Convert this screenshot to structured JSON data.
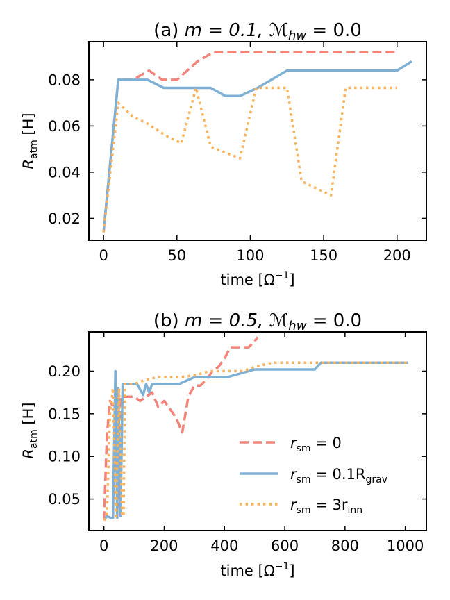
{
  "colors": {
    "red": "#f4837a",
    "blue": "#7eb0d5",
    "orange": "#fbb25b",
    "axis": "#000000"
  },
  "chart_data": [
    {
      "id": "a",
      "type": "line",
      "title_prefix": "(a) ",
      "title_m": "m = 0.1,",
      "title_mhw": "ℳ",
      "title_mhw_sub": "hw",
      "title_mhw_value": " = 0.0",
      "xlabel": "time [Ω",
      "xlabel_sup": "−1",
      "xlabel_end": "]",
      "ylabel": "R",
      "ylabel_sub": "atm",
      "ylabel_unit": " [H]",
      "xlim": [
        -10,
        220
      ],
      "ylim": [
        0.0105,
        0.0965
      ],
      "xticks": [
        0,
        50,
        100,
        150,
        200
      ],
      "xtick_labels": [
        "0",
        "50",
        "100",
        "150",
        "200"
      ],
      "yticks": [
        0.02,
        0.04,
        0.06,
        0.08
      ],
      "ytick_labels": [
        "0.02",
        "0.04",
        "0.06",
        "0.08"
      ],
      "series": [
        {
          "name": "r_sm = 0",
          "style": "dashed",
          "color_key": "red",
          "x": [
            0,
            10,
            20,
            31,
            40,
            50,
            64,
            75,
            85,
            100,
            125,
            150,
            175,
            200
          ],
          "y": [
            0.014,
            0.08,
            0.08,
            0.084,
            0.08,
            0.08,
            0.088,
            0.092,
            0.092,
            0.092,
            0.092,
            0.092,
            0.092,
            0.092
          ]
        },
        {
          "name": "r_sm = 0.1 R_grav",
          "style": "solid",
          "color_key": "blue",
          "x": [
            0,
            10,
            20,
            30,
            41,
            50,
            60,
            73,
            83,
            93,
            105,
            125,
            150,
            175,
            200,
            210
          ],
          "y": [
            0.014,
            0.08,
            0.08,
            0.08,
            0.0765,
            0.0765,
            0.0765,
            0.0765,
            0.073,
            0.073,
            0.0765,
            0.084,
            0.084,
            0.084,
            0.084,
            0.088
          ]
        },
        {
          "name": "r_sm = 3 r_inn",
          "style": "dotted",
          "color_key": "orange",
          "x": [
            0,
            10,
            20,
            30,
            42,
            53,
            63,
            73,
            83,
            93,
            104,
            115,
            125,
            135,
            145,
            155,
            165,
            175,
            200
          ],
          "y": [
            0.014,
            0.07,
            0.064,
            0.061,
            0.056,
            0.0525,
            0.0765,
            0.051,
            0.0485,
            0.046,
            0.0765,
            0.0765,
            0.0765,
            0.036,
            0.033,
            0.03,
            0.0765,
            0.0765,
            0.0765
          ]
        }
      ]
    },
    {
      "id": "b",
      "type": "line",
      "title_prefix": "(b) ",
      "title_m": "m = 0.5,",
      "title_mhw": "ℳ",
      "title_mhw_sub": "hw",
      "title_mhw_value": " = 0.0",
      "xlabel": "time [Ω",
      "xlabel_sup": "−1",
      "xlabel_end": "]",
      "ylabel": "R",
      "ylabel_sub": "atm",
      "ylabel_unit": " [H]",
      "xlim": [
        -50,
        1070
      ],
      "ylim": [
        0.013,
        0.246
      ],
      "xticks": [
        0,
        200,
        400,
        600,
        800,
        1000
      ],
      "xtick_labels": [
        "0",
        "200",
        "400",
        "600",
        "800",
        "1000"
      ],
      "yticks": [
        0.05,
        0.1,
        0.15,
        0.2
      ],
      "ytick_labels": [
        "0.05",
        "0.10",
        "0.15",
        "0.20"
      ],
      "legend_position": "lower right",
      "legend": [
        {
          "label_main": "r",
          "label_sub": "sm",
          "label_rest": " = 0",
          "style": "dashed",
          "color_key": "red"
        },
        {
          "label_main": "r",
          "label_sub": "sm",
          "label_rest": " = 0.1R",
          "label_sub2": "grav",
          "style": "solid",
          "color_key": "blue"
        },
        {
          "label_main": "r",
          "label_sub": "sm",
          "label_rest": " = 3r",
          "label_sub2": "inn",
          "style": "dotted",
          "color_key": "orange"
        }
      ],
      "series": [
        {
          "name": "r_sm = 0",
          "style": "dashed",
          "color_key": "red",
          "x": [
            0,
            10,
            20,
            28,
            36,
            45,
            55,
            65,
            80,
            100,
            120,
            140,
            160,
            180,
            200,
            220,
            240,
            260,
            280,
            300,
            320,
            340,
            360,
            380,
            400,
            420,
            440,
            460,
            480,
            500,
            510
          ],
          "y": [
            0.025,
            0.125,
            0.165,
            0.16,
            0.16,
            0.04,
            0.17,
            0.17,
            0.17,
            0.17,
            0.165,
            0.17,
            0.175,
            0.158,
            0.165,
            0.155,
            0.145,
            0.128,
            0.17,
            0.183,
            0.183,
            0.19,
            0.2,
            0.205,
            0.215,
            0.228,
            0.228,
            0.228,
            0.228,
            0.235,
            0.24
          ]
        },
        {
          "name": "r_sm = 0.1 R_grav",
          "style": "solid",
          "color_key": "blue",
          "x": [
            0,
            10,
            22,
            30,
            38,
            44,
            48,
            55,
            62,
            68,
            75,
            90,
            110,
            130,
            140,
            150,
            160,
            175,
            200,
            250,
            300,
            350,
            410,
            500,
            600,
            700,
            720,
            800,
            900,
            1010
          ],
          "y": [
            0.025,
            0.03,
            0.028,
            0.028,
            0.2,
            0.028,
            0.18,
            0.03,
            0.185,
            0.185,
            0.185,
            0.185,
            0.185,
            0.172,
            0.185,
            0.175,
            0.185,
            0.185,
            0.185,
            0.185,
            0.193,
            0.193,
            0.193,
            0.202,
            0.202,
            0.202,
            0.21,
            0.21,
            0.21,
            0.21
          ]
        },
        {
          "name": "r_sm = 3 r_inn",
          "style": "dotted",
          "color_key": "orange",
          "x": [
            0,
            10,
            20,
            30,
            40,
            50,
            60,
            65,
            70,
            80,
            100,
            140,
            180,
            200,
            250,
            300,
            350,
            400,
            460,
            500,
            560,
            600,
            700,
            800,
            900,
            1010
          ],
          "y": [
            0.025,
            0.03,
            0.15,
            0.18,
            0.03,
            0.18,
            0.03,
            0.03,
            0.185,
            0.185,
            0.185,
            0.19,
            0.193,
            0.193,
            0.193,
            0.195,
            0.2,
            0.2,
            0.2,
            0.205,
            0.21,
            0.21,
            0.21,
            0.21,
            0.21,
            0.21
          ]
        }
      ]
    }
  ]
}
